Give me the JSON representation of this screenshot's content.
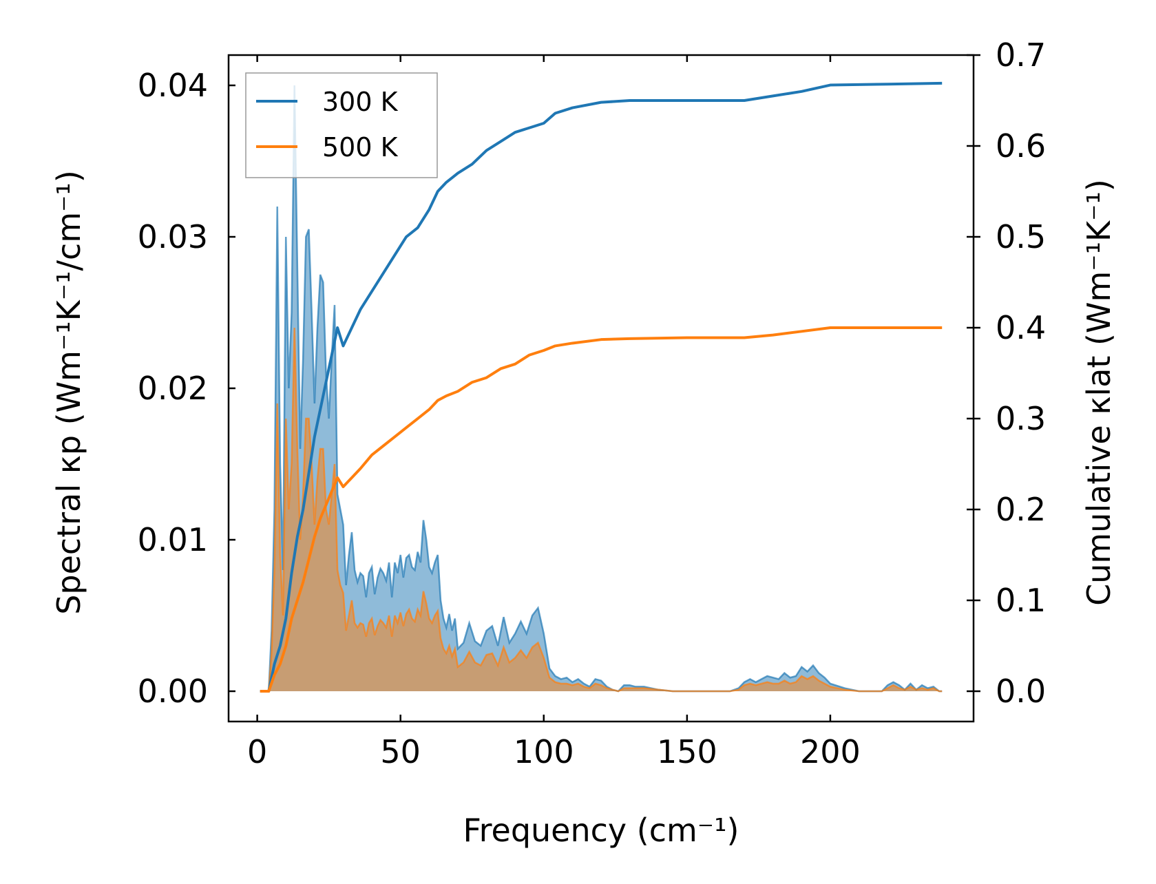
{
  "chart_data": {
    "type": "line",
    "xlabel": "Frequency (cm⁻¹)",
    "ylabel_left": "Spectral κp (Wm⁻¹K⁻¹/cm⁻¹)",
    "ylabel_right": "Cumulative κlat (Wm⁻¹K⁻¹)",
    "xlim": [
      -10,
      250
    ],
    "ylim_left": [
      -0.002,
      0.042
    ],
    "ylim_right": [
      -0.0333,
      0.7
    ],
    "x_ticks": [
      0,
      50,
      100,
      150,
      200
    ],
    "y_left_ticks": [
      0.0,
      0.01,
      0.02,
      0.03,
      0.04
    ],
    "y_right_ticks": [
      0.0,
      0.1,
      0.2,
      0.3,
      0.4,
      0.5,
      0.6,
      0.7
    ],
    "x_tick_labels": [
      "0",
      "50",
      "100",
      "150",
      "200"
    ],
    "y_left_tick_labels": [
      "0.00",
      "0.01",
      "0.02",
      "0.03",
      "0.04"
    ],
    "y_right_tick_labels": [
      "0.0",
      "0.1",
      "0.2",
      "0.3",
      "0.4",
      "0.5",
      "0.6",
      "0.7"
    ],
    "legend": {
      "location": "upper-left",
      "entries": [
        "300 K",
        "500 K"
      ]
    },
    "colors": {
      "s300": "#1f77b4",
      "s500": "#ff7f0e",
      "fill300": "#1f77b4",
      "fill500": "#ff7f0e"
    },
    "series": [
      {
        "name": "300 K",
        "spectral": {
          "x": [
            1,
            4,
            5,
            6,
            7,
            8,
            9,
            10,
            11,
            12,
            13,
            14,
            15,
            16,
            17,
            18,
            19,
            20,
            21,
            22,
            23,
            24,
            25,
            26,
            27,
            28,
            29,
            30,
            31,
            32,
            33,
            34,
            35,
            36,
            37,
            38,
            39,
            40,
            41,
            42,
            43,
            44,
            45,
            46,
            47,
            48,
            49,
            50,
            51,
            52,
            53,
            54,
            55,
            56,
            57,
            58,
            59,
            60,
            61,
            62,
            63,
            64,
            65,
            66,
            67,
            68,
            69,
            70,
            72,
            74,
            76,
            78,
            80,
            82,
            84,
            86,
            88,
            90,
            92,
            94,
            96,
            98,
            100,
            102,
            104,
            106,
            108,
            110,
            112,
            114,
            116,
            118,
            120,
            122,
            124,
            126,
            128,
            130,
            132,
            135,
            140,
            145,
            150,
            155,
            160,
            165,
            168,
            170,
            172,
            174,
            176,
            178,
            180,
            182,
            184,
            186,
            188,
            190,
            192,
            194,
            196,
            198,
            200,
            205,
            210,
            215,
            218,
            220,
            222,
            224,
            226,
            228,
            230,
            232,
            234,
            236,
            238,
            239
          ],
          "y": [
            0,
            0,
            0.004,
            0.012,
            0.032,
            0.015,
            0.008,
            0.03,
            0.02,
            0.025,
            0.04,
            0.028,
            0.016,
            0.022,
            0.03,
            0.0305,
            0.025,
            0.019,
            0.024,
            0.0275,
            0.027,
            0.021,
            0.018,
            0.022,
            0.0255,
            0.013,
            0.012,
            0.011,
            0.007,
            0.009,
            0.0105,
            0.008,
            0.0072,
            0.0078,
            0.0076,
            0.0062,
            0.0078,
            0.0082,
            0.0064,
            0.0075,
            0.0081,
            0.0078,
            0.0073,
            0.0085,
            0.0062,
            0.0085,
            0.0078,
            0.009,
            0.0075,
            0.0088,
            0.009,
            0.0082,
            0.008,
            0.0092,
            0.0085,
            0.0113,
            0.01,
            0.0082,
            0.0078,
            0.0085,
            0.009,
            0.006,
            0.0048,
            0.0042,
            0.0051,
            0.004,
            0.0048,
            0.0028,
            0.0032,
            0.0045,
            0.0033,
            0.003,
            0.004,
            0.0043,
            0.003,
            0.0049,
            0.0032,
            0.0038,
            0.0046,
            0.0038,
            0.005,
            0.0055,
            0.0038,
            0.0015,
            0.001,
            0.0008,
            0.0009,
            0.0006,
            0.0008,
            0.0005,
            0.0003,
            0.0008,
            0.0007,
            0.0003,
            0.0001,
            0,
            0.0004,
            0.0004,
            0.0003,
            0.0003,
            0.0001,
            0,
            0,
            0,
            0,
            0,
            0.0002,
            0.0006,
            0.0008,
            0.0006,
            0.0008,
            0.001,
            0.0009,
            0.0008,
            0.0012,
            0.0009,
            0.001,
            0.0016,
            0.0013,
            0.0017,
            0.0012,
            0.0009,
            0.0005,
            0.0002,
            0,
            0,
            0,
            0.0004,
            0.0006,
            0.0004,
            0.0001,
            0.0005,
            0.0001,
            0.0004,
            0.0002,
            0.0003,
            0,
            0
          ]
        },
        "cumulative": {
          "x": [
            1,
            4,
            6,
            8,
            10,
            12,
            14,
            16,
            18,
            20,
            22,
            24,
            26,
            28,
            30,
            33,
            36,
            40,
            44,
            48,
            52,
            56,
            60,
            63,
            66,
            70,
            75,
            80,
            85,
            90,
            95,
            100,
            104,
            110,
            120,
            130,
            150,
            170,
            180,
            190,
            200,
            220,
            239
          ],
          "y": [
            0,
            0,
            0.03,
            0.05,
            0.08,
            0.13,
            0.17,
            0.2,
            0.24,
            0.28,
            0.31,
            0.34,
            0.37,
            0.4,
            0.38,
            0.4,
            0.42,
            0.44,
            0.46,
            0.48,
            0.5,
            0.51,
            0.53,
            0.55,
            0.56,
            0.57,
            0.58,
            0.595,
            0.605,
            0.615,
            0.62,
            0.625,
            0.636,
            0.642,
            0.648,
            0.65,
            0.65,
            0.65,
            0.655,
            0.66,
            0.667,
            0.668,
            0.669
          ]
        }
      },
      {
        "name": "500 K",
        "spectral": {
          "x": [
            1,
            4,
            5,
            6,
            7,
            8,
            9,
            10,
            11,
            12,
            13,
            14,
            15,
            16,
            17,
            18,
            19,
            20,
            21,
            22,
            23,
            24,
            25,
            26,
            27,
            28,
            29,
            30,
            31,
            32,
            33,
            34,
            35,
            36,
            37,
            38,
            39,
            40,
            41,
            42,
            43,
            44,
            45,
            46,
            47,
            48,
            49,
            50,
            51,
            52,
            53,
            54,
            55,
            56,
            57,
            58,
            59,
            60,
            61,
            62,
            63,
            64,
            65,
            66,
            67,
            68,
            69,
            70,
            72,
            74,
            76,
            78,
            80,
            82,
            84,
            86,
            88,
            90,
            92,
            94,
            96,
            98,
            100,
            102,
            104,
            106,
            108,
            110,
            112,
            114,
            116,
            118,
            120,
            122,
            124,
            126,
            128,
            130,
            132,
            135,
            140,
            145,
            150,
            155,
            160,
            165,
            168,
            170,
            172,
            174,
            176,
            178,
            180,
            182,
            184,
            186,
            188,
            190,
            192,
            194,
            196,
            198,
            200,
            205,
            210,
            215,
            218,
            220,
            222,
            224,
            226,
            228,
            230,
            232,
            234,
            236,
            238,
            239
          ],
          "y": [
            0,
            0,
            0.0025,
            0.008,
            0.019,
            0.009,
            0.005,
            0.018,
            0.012,
            0.015,
            0.024,
            0.016,
            0.01,
            0.013,
            0.018,
            0.018,
            0.015,
            0.011,
            0.014,
            0.016,
            0.016,
            0.012,
            0.011,
            0.013,
            0.015,
            0.008,
            0.007,
            0.0065,
            0.004,
            0.005,
            0.006,
            0.0045,
            0.0042,
            0.0045,
            0.0044,
            0.0036,
            0.0045,
            0.0048,
            0.0037,
            0.0043,
            0.0047,
            0.0045,
            0.0042,
            0.005,
            0.0036,
            0.005,
            0.0045,
            0.0052,
            0.0043,
            0.0051,
            0.0054,
            0.0048,
            0.0046,
            0.0054,
            0.005,
            0.0066,
            0.0058,
            0.0048,
            0.0045,
            0.005,
            0.0053,
            0.0035,
            0.0028,
            0.0025,
            0.003,
            0.0023,
            0.0028,
            0.0016,
            0.0019,
            0.0026,
            0.0019,
            0.0017,
            0.0024,
            0.0025,
            0.0017,
            0.0029,
            0.0019,
            0.0022,
            0.0027,
            0.0022,
            0.0029,
            0.0032,
            0.0022,
            0.0009,
            0.0006,
            0.0005,
            0.0005,
            0.0004,
            0.0005,
            0.0003,
            0.0002,
            0.0005,
            0.0004,
            0.0002,
            0.0001,
            0,
            0.0002,
            0.0002,
            0.0002,
            0.0002,
            0.0001,
            0,
            0,
            0,
            0,
            0,
            0.0001,
            0.0004,
            0.0005,
            0.0004,
            0.0005,
            0.0006,
            0.0005,
            0.0005,
            0.0007,
            0.0005,
            0.0006,
            0.001,
            0.0008,
            0.001,
            0.0007,
            0.0005,
            0.0003,
            0.0001,
            0,
            0,
            0,
            0.0002,
            0.0004,
            0.0002,
            0.0001,
            0.0003,
            0.0001,
            0.0002,
            0.0001,
            0.0002,
            0,
            0
          ]
        },
        "cumulative": {
          "x": [
            1,
            4,
            6,
            8,
            10,
            12,
            14,
            16,
            18,
            20,
            22,
            24,
            26,
            28,
            30,
            33,
            36,
            40,
            44,
            48,
            52,
            56,
            60,
            63,
            66,
            70,
            75,
            80,
            85,
            90,
            95,
            100,
            104,
            110,
            120,
            130,
            150,
            170,
            180,
            190,
            200,
            220,
            239
          ],
          "y": [
            0,
            0,
            0.018,
            0.03,
            0.05,
            0.08,
            0.1,
            0.12,
            0.145,
            0.17,
            0.19,
            0.205,
            0.22,
            0.235,
            0.225,
            0.235,
            0.245,
            0.26,
            0.27,
            0.28,
            0.29,
            0.3,
            0.31,
            0.32,
            0.325,
            0.33,
            0.34,
            0.345,
            0.355,
            0.36,
            0.37,
            0.375,
            0.38,
            0.383,
            0.387,
            0.388,
            0.389,
            0.389,
            0.392,
            0.396,
            0.4,
            0.4,
            0.4
          ]
        }
      }
    ]
  }
}
